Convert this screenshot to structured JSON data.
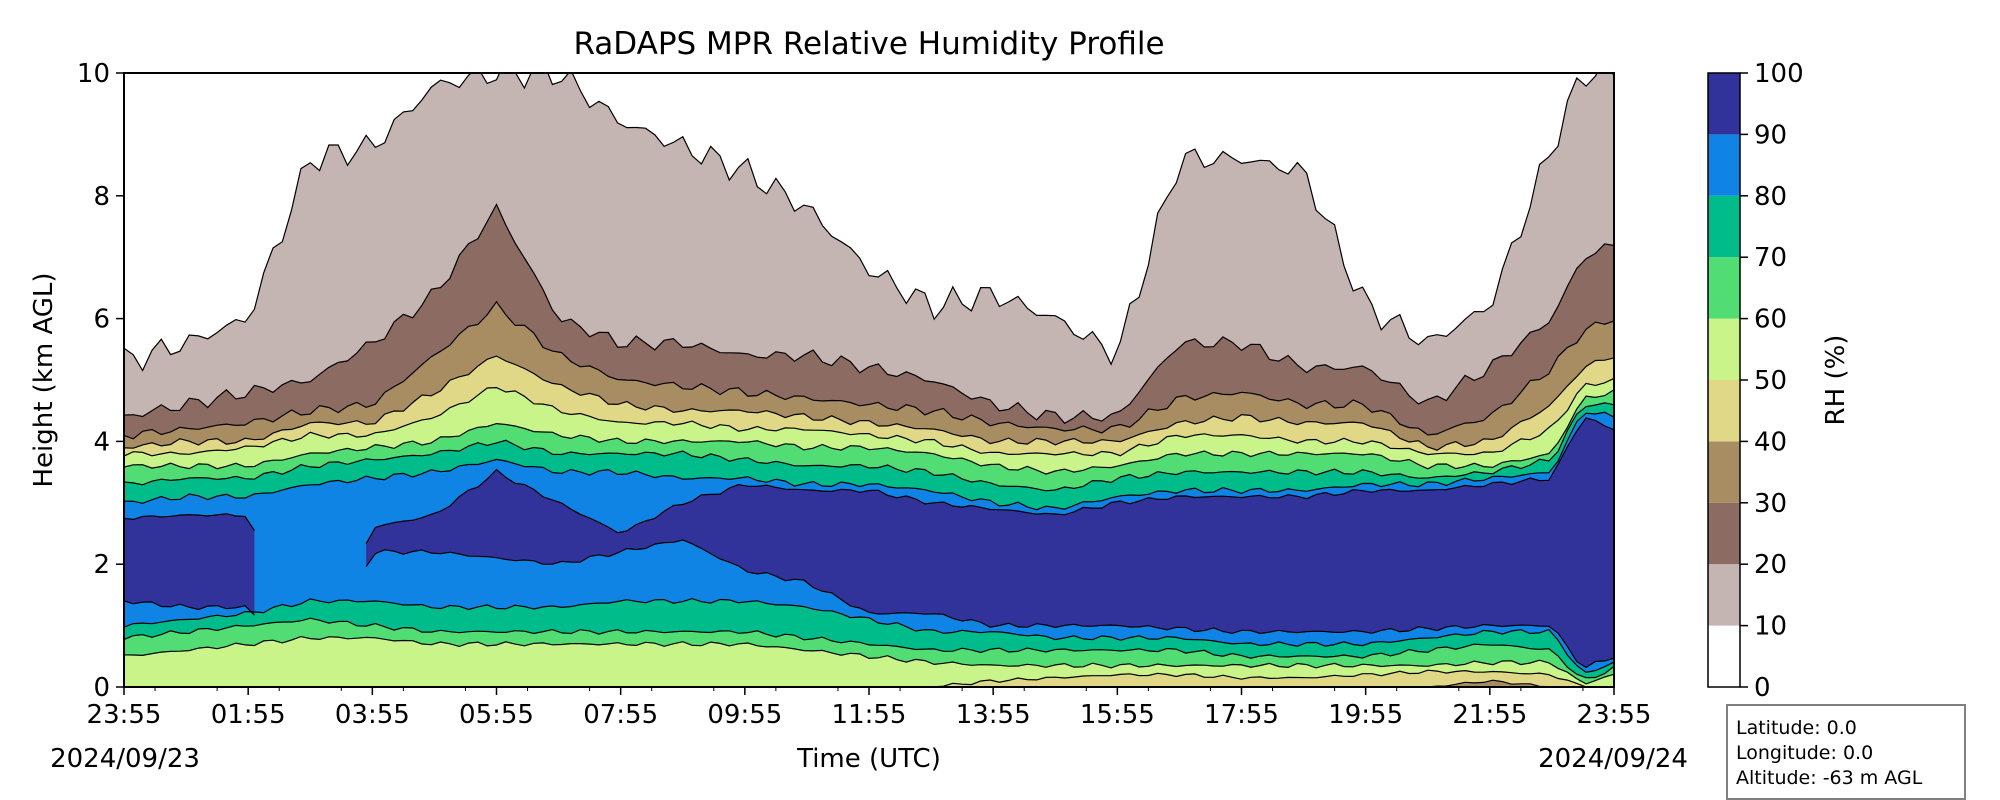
{
  "chart_data": {
    "type": "heatmap",
    "title": "RaDAPS MPR Relative Humidity Profile",
    "xlabel": "Time (UTC)",
    "ylabel": "Height (km AGL)",
    "x_ticks": [
      "23:55",
      "01:55",
      "03:55",
      "05:55",
      "07:55",
      "09:55",
      "11:55",
      "13:55",
      "15:55",
      "17:55",
      "19:55",
      "21:55",
      "23:55"
    ],
    "x_start_date": "2024/09/23",
    "x_end_date": "2024/09/24",
    "x_range": [
      "2024/09/23 23:55",
      "2024/09/24 23:55"
    ],
    "ylim": [
      0,
      10
    ],
    "y_ticks": [
      0,
      2,
      4,
      6,
      8,
      10
    ],
    "colorbar": {
      "label": "RH (%)",
      "ticks": [
        0,
        10,
        20,
        30,
        40,
        50,
        60,
        70,
        80,
        90,
        100
      ],
      "levels": [
        {
          "range": [
            0,
            10
          ],
          "color": "#ffffff"
        },
        {
          "range": [
            10,
            20
          ],
          "color": "#c4b4b2"
        },
        {
          "range": [
            20,
            30
          ],
          "color": "#8c6c62"
        },
        {
          "range": [
            30,
            40
          ],
          "color": "#a88c62"
        },
        {
          "range": [
            40,
            50
          ],
          "color": "#e0d886"
        },
        {
          "range": [
            50,
            60
          ],
          "color": "#c8f48a"
        },
        {
          "range": [
            60,
            70
          ],
          "color": "#52dc74"
        },
        {
          "range": [
            70,
            80
          ],
          "color": "#00bc8a"
        },
        {
          "range": [
            80,
            90
          ],
          "color": "#1084e4"
        },
        {
          "range": [
            90,
            100
          ],
          "color": "#32339a"
        }
      ]
    },
    "x_hours": [
      0,
      1,
      2,
      3,
      4,
      5,
      6,
      7,
      8,
      9,
      10,
      11,
      12,
      13,
      14,
      15,
      16,
      17,
      18,
      19,
      20,
      21,
      22,
      23,
      23.5,
      24
    ],
    "contour_heights_km": {
      "rh_10": [
        5.3,
        5.6,
        6.0,
        8.6,
        8.8,
        9.8,
        10.0,
        10.0,
        9.2,
        8.8,
        8.4,
        7.8,
        6.8,
        6.2,
        6.4,
        6.0,
        5.4,
        8.6,
        8.6,
        8.4,
        6.2,
        5.6,
        6.2,
        8.8,
        10.0,
        10.0
      ],
      "rh_20": [
        4.4,
        4.6,
        4.8,
        5.0,
        5.6,
        6.4,
        7.8,
        6.0,
        5.6,
        5.6,
        5.4,
        5.4,
        5.2,
        5.0,
        4.6,
        4.4,
        4.4,
        5.6,
        5.6,
        5.2,
        5.2,
        4.6,
        5.2,
        6.0,
        7.0,
        7.2
      ],
      "rh_30": [
        4.1,
        4.2,
        4.3,
        4.5,
        4.6,
        5.4,
        6.2,
        5.4,
        5.0,
        4.9,
        4.8,
        4.7,
        4.6,
        4.5,
        4.3,
        4.2,
        4.2,
        4.7,
        4.8,
        4.6,
        4.6,
        4.1,
        4.4,
        5.2,
        5.8,
        6.0
      ],
      "rh_40": [
        3.9,
        4.0,
        4.0,
        4.3,
        4.3,
        4.8,
        5.4,
        4.9,
        4.6,
        4.5,
        4.5,
        4.4,
        4.3,
        4.2,
        4.0,
        4.0,
        4.0,
        4.3,
        4.4,
        4.3,
        4.3,
        3.9,
        4.0,
        4.6,
        5.2,
        5.4
      ],
      "rh_50": [
        3.8,
        3.8,
        3.9,
        4.1,
        4.1,
        4.4,
        4.9,
        4.5,
        4.3,
        4.3,
        4.2,
        4.2,
        4.1,
        4.0,
        3.8,
        3.8,
        3.8,
        4.1,
        4.1,
        4.0,
        4.0,
        3.8,
        3.8,
        4.2,
        4.9,
        5.0
      ],
      "rh_60": [
        3.6,
        3.6,
        3.6,
        3.8,
        3.9,
        4.0,
        4.3,
        4.1,
        4.0,
        4.0,
        4.0,
        3.9,
        3.9,
        3.8,
        3.6,
        3.5,
        3.6,
        3.8,
        3.8,
        3.8,
        3.8,
        3.6,
        3.6,
        3.8,
        4.7,
        4.8
      ],
      "rh_70": [
        3.3,
        3.4,
        3.4,
        3.6,
        3.7,
        3.8,
        4.0,
        3.8,
        3.8,
        3.8,
        3.7,
        3.6,
        3.6,
        3.5,
        3.3,
        3.2,
        3.4,
        3.5,
        3.5,
        3.5,
        3.5,
        3.4,
        3.5,
        3.7,
        4.6,
        4.6
      ],
      "rh_80": [
        3.0,
        3.1,
        3.1,
        3.3,
        3.4,
        3.5,
        3.7,
        3.5,
        3.5,
        3.4,
        3.4,
        3.3,
        3.3,
        3.2,
        3.0,
        2.9,
        3.1,
        3.2,
        3.2,
        3.2,
        3.3,
        3.3,
        3.4,
        3.5,
        4.5,
        4.4
      ],
      "rh_90_top": [
        2.75,
        2.8,
        2.8,
        0.0,
        2.6,
        2.8,
        3.5,
        3.0,
        2.5,
        3.0,
        3.3,
        3.2,
        3.2,
        3.0,
        2.9,
        2.8,
        3.0,
        3.1,
        3.1,
        3.1,
        3.2,
        3.2,
        3.3,
        3.4,
        4.4,
        4.2
      ],
      "rh_90_bottom": [
        1.4,
        1.3,
        1.3,
        0.0,
        2.2,
        2.2,
        2.1,
        2.0,
        2.2,
        2.4,
        1.9,
        1.7,
        1.2,
        1.2,
        1.0,
        1.0,
        1.0,
        0.95,
        0.9,
        0.9,
        0.9,
        0.95,
        1.0,
        1.0,
        0.3,
        0.5
      ],
      "rh_80_bottom": [
        1.0,
        1.1,
        1.2,
        1.4,
        1.4,
        1.3,
        1.3,
        1.3,
        1.4,
        1.4,
        1.4,
        1.3,
        1.1,
        0.9,
        0.9,
        0.8,
        0.8,
        0.8,
        0.7,
        0.7,
        0.7,
        0.8,
        0.9,
        0.9,
        0.2,
        0.4
      ],
      "rh_70_bottom": [
        0.8,
        0.9,
        1.0,
        1.1,
        1.0,
        0.9,
        0.9,
        0.9,
        0.9,
        0.9,
        0.9,
        0.8,
        0.7,
        0.6,
        0.6,
        0.6,
        0.6,
        0.6,
        0.5,
        0.5,
        0.5,
        0.6,
        0.7,
        0.6,
        0.1,
        0.3
      ],
      "rh_60_bottom": [
        0.5,
        0.6,
        0.7,
        0.8,
        0.8,
        0.7,
        0.7,
        0.7,
        0.7,
        0.7,
        0.7,
        0.6,
        0.5,
        0.4,
        0.35,
        0.35,
        0.35,
        0.35,
        0.35,
        0.35,
        0.35,
        0.35,
        0.4,
        0.4,
        0.05,
        0.2
      ],
      "rh_50_bottom": [
        0.0,
        0.0,
        0.0,
        0.0,
        0.0,
        0.0,
        0.0,
        0.0,
        0.0,
        0.0,
        0.0,
        0.0,
        0.0,
        0.0,
        0.1,
        0.15,
        0.2,
        0.2,
        0.15,
        0.15,
        0.2,
        0.25,
        0.25,
        0.2,
        0.0,
        0.0
      ],
      "rh_40_bottom": [
        0.0,
        0.0,
        0.0,
        0.0,
        0.0,
        0.0,
        0.0,
        0.0,
        0.0,
        0.0,
        0.0,
        0.0,
        0.0,
        0.0,
        0.0,
        0.0,
        0.0,
        0.0,
        0.0,
        0.0,
        0.0,
        0.0,
        0.1,
        0.0,
        0.0,
        0.0
      ]
    }
  },
  "info": {
    "latitude": "Latitude: 0.0",
    "longitude": "Longitude: 0.0",
    "altitude": "Altitude: -63 m AGL"
  }
}
